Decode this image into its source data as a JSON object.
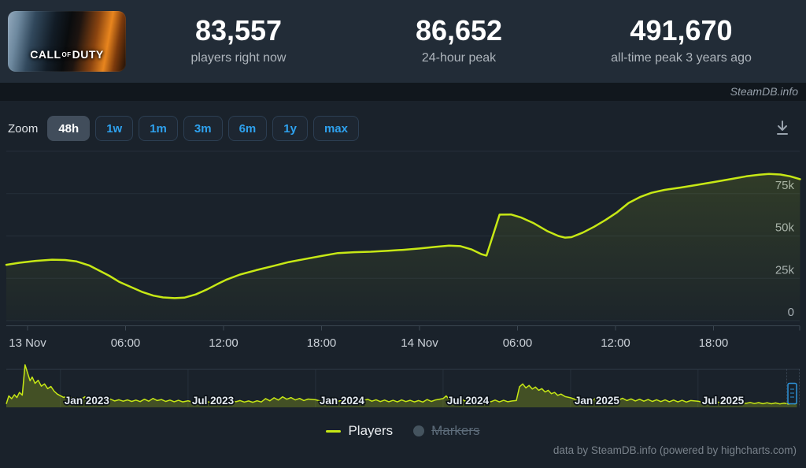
{
  "header": {
    "game_logo": [
      "CALL",
      "OF",
      "DUTY"
    ],
    "stats": [
      {
        "value": "83,557",
        "label": "players right now"
      },
      {
        "value": "86,652",
        "label": "24-hour peak"
      },
      {
        "value": "491,670",
        "label": "all-time peak 3 years ago"
      }
    ],
    "watermark": "SteamDB.info"
  },
  "toolbar": {
    "zoom_label": "Zoom",
    "ranges": [
      {
        "label": "48h",
        "selected": true
      },
      {
        "label": "1w",
        "selected": false
      },
      {
        "label": "1m",
        "selected": false
      },
      {
        "label": "3m",
        "selected": false
      },
      {
        "label": "6m",
        "selected": false
      },
      {
        "label": "1y",
        "selected": false
      },
      {
        "label": "max",
        "selected": false
      }
    ]
  },
  "legend": {
    "players_label": "Players",
    "markers_label": "Markers"
  },
  "footer": {
    "credits": "data by SteamDB.info (powered by highcharts.com)"
  },
  "colors": {
    "line": "#c7e815",
    "accent_blue": "#2ea1ee",
    "navigator_handle": "#2e93d9"
  },
  "chart_data": {
    "type": "line",
    "title": "",
    "ylim": [
      0,
      100000
    ],
    "yticks": [
      {
        "v": 0,
        "label": "0"
      },
      {
        "v": 25000,
        "label": "25k"
      },
      {
        "v": 50000,
        "label": "50k"
      },
      {
        "v": 75000,
        "label": "75k"
      }
    ],
    "xticks": [
      {
        "h": 0,
        "label": "13 Nov"
      },
      {
        "h": 6,
        "label": "06:00"
      },
      {
        "h": 12,
        "label": "12:00"
      },
      {
        "h": 18,
        "label": "18:00"
      },
      {
        "h": 24,
        "label": "14 Nov"
      },
      {
        "h": 30,
        "label": "06:00"
      },
      {
        "h": 36,
        "label": "12:00"
      },
      {
        "h": 42,
        "label": "18:00"
      }
    ],
    "series": [
      {
        "name": "Players",
        "color": "#c7e815",
        "points_hours_vs_players": [
          [
            -1.3,
            33000
          ],
          [
            -0.5,
            34200
          ],
          [
            0.5,
            35300
          ],
          [
            1.5,
            36000
          ],
          [
            2.3,
            35800
          ],
          [
            3,
            35000
          ],
          [
            3.8,
            32500
          ],
          [
            4.5,
            29000
          ],
          [
            5,
            26500
          ],
          [
            5.6,
            23000
          ],
          [
            6.3,
            20000
          ],
          [
            7,
            17000
          ],
          [
            7.7,
            14800
          ],
          [
            8.3,
            13700
          ],
          [
            9,
            13300
          ],
          [
            9.6,
            13600
          ],
          [
            10.3,
            15500
          ],
          [
            11,
            18500
          ],
          [
            11.6,
            21500
          ],
          [
            12.2,
            24300
          ],
          [
            13,
            27200
          ],
          [
            14,
            29800
          ],
          [
            15,
            32200
          ],
          [
            16,
            34600
          ],
          [
            17,
            36400
          ],
          [
            18,
            38200
          ],
          [
            19,
            39900
          ],
          [
            20,
            40400
          ],
          [
            21,
            40700
          ],
          [
            22,
            41200
          ],
          [
            23,
            41800
          ],
          [
            24,
            42600
          ],
          [
            25,
            43600
          ],
          [
            25.8,
            44300
          ],
          [
            26.5,
            44000
          ],
          [
            27.2,
            42000
          ],
          [
            27.8,
            39200
          ],
          [
            28.1,
            38400
          ],
          [
            28.9,
            62600
          ],
          [
            29.6,
            62700
          ],
          [
            30.2,
            61000
          ],
          [
            31,
            57500
          ],
          [
            31.8,
            53000
          ],
          [
            32.5,
            50000
          ],
          [
            32.9,
            49000
          ],
          [
            33.3,
            49300
          ],
          [
            34,
            52000
          ],
          [
            34.7,
            55500
          ],
          [
            35.4,
            59500
          ],
          [
            36.1,
            64000
          ],
          [
            36.8,
            69500
          ],
          [
            37.5,
            73000
          ],
          [
            38.2,
            75500
          ],
          [
            39,
            77200
          ],
          [
            40,
            78600
          ],
          [
            41,
            80200
          ],
          [
            42,
            81800
          ],
          [
            43,
            83500
          ],
          [
            44,
            85200
          ],
          [
            44.8,
            86200
          ],
          [
            45.4,
            86652
          ],
          [
            46.1,
            86300
          ],
          [
            46.7,
            85200
          ],
          [
            47.3,
            83557
          ]
        ]
      }
    ],
    "navigator": {
      "labels": [
        {
          "m": 2.55,
          "label": "Jan 2023"
        },
        {
          "m": 8.55,
          "label": "Jul 2023"
        },
        {
          "m": 14.55,
          "label": "Jan 2024"
        },
        {
          "m": 20.55,
          "label": "Jul 2024"
        },
        {
          "m": 26.55,
          "label": "Jan 2025"
        },
        {
          "m": 32.55,
          "label": "Jul 2025"
        }
      ],
      "points_months_vs_players_thousands": [
        [
          0,
          22
        ],
        [
          0.12,
          118
        ],
        [
          0.25,
          85
        ],
        [
          0.38,
          132
        ],
        [
          0.5,
          98
        ],
        [
          0.62,
          160
        ],
        [
          0.75,
          128
        ],
        [
          0.88,
          491.7
        ],
        [
          1.02,
          380
        ],
        [
          1.12,
          300
        ],
        [
          1.22,
          345
        ],
        [
          1.35,
          268
        ],
        [
          1.5,
          305
        ],
        [
          1.65,
          235
        ],
        [
          1.8,
          262
        ],
        [
          1.95,
          205
        ],
        [
          2.1,
          232
        ],
        [
          2.25,
          175
        ],
        [
          2.4,
          140
        ],
        [
          2.55,
          120
        ],
        [
          2.7,
          100
        ],
        [
          2.9,
          118
        ],
        [
          3.1,
          88
        ],
        [
          3.3,
          96
        ],
        [
          3.5,
          75
        ],
        [
          3.7,
          108
        ],
        [
          3.9,
          80
        ],
        [
          4.1,
          92
        ],
        [
          4.3,
          70
        ],
        [
          4.5,
          85
        ],
        [
          4.7,
          62
        ],
        [
          4.9,
          80
        ],
        [
          5.1,
          58
        ],
        [
          5.3,
          72
        ],
        [
          5.5,
          55
        ],
        [
          5.7,
          70
        ],
        [
          5.9,
          52
        ],
        [
          6.1,
          68
        ],
        [
          6.3,
          50
        ],
        [
          6.5,
          78
        ],
        [
          6.7,
          55
        ],
        [
          6.9,
          88
        ],
        [
          7.1,
          62
        ],
        [
          7.3,
          75
        ],
        [
          7.5,
          52
        ],
        [
          7.7,
          68
        ],
        [
          7.9,
          48
        ],
        [
          8.1,
          65
        ],
        [
          8.3,
          46
        ],
        [
          8.55,
          60
        ],
        [
          8.8,
          42
        ],
        [
          9,
          58
        ],
        [
          9.2,
          40
        ],
        [
          9.4,
          56
        ],
        [
          9.6,
          38
        ],
        [
          9.8,
          55
        ],
        [
          10,
          40
        ],
        [
          10.2,
          60
        ],
        [
          10.4,
          45
        ],
        [
          10.6,
          68
        ],
        [
          10.8,
          48
        ],
        [
          11,
          62
        ],
        [
          11.2,
          44
        ],
        [
          11.4,
          58
        ],
        [
          11.6,
          42
        ],
        [
          11.8,
          60
        ],
        [
          12,
          45
        ],
        [
          12.2,
          86
        ],
        [
          12.4,
          60
        ],
        [
          12.6,
          95
        ],
        [
          12.8,
          68
        ],
        [
          13,
          108
        ],
        [
          13.2,
          78
        ],
        [
          13.4,
          98
        ],
        [
          13.6,
          70
        ],
        [
          13.8,
          88
        ],
        [
          14,
          62
        ],
        [
          14.2,
          80
        ],
        [
          14.55,
          72
        ],
        [
          14.8,
          55
        ],
        [
          15,
          75
        ],
        [
          15.2,
          52
        ],
        [
          15.4,
          70
        ],
        [
          15.6,
          50
        ],
        [
          15.8,
          72
        ],
        [
          16,
          52
        ],
        [
          16.2,
          80
        ],
        [
          16.4,
          58
        ],
        [
          16.6,
          85
        ],
        [
          16.8,
          60
        ],
        [
          17,
          78
        ],
        [
          17.2,
          55
        ],
        [
          17.4,
          72
        ],
        [
          17.6,
          50
        ],
        [
          17.8,
          68
        ],
        [
          18,
          48
        ],
        [
          18.2,
          65
        ],
        [
          18.4,
          46
        ],
        [
          18.6,
          70
        ],
        [
          18.8,
          50
        ],
        [
          19,
          65
        ],
        [
          19.2,
          46
        ],
        [
          19.4,
          62
        ],
        [
          19.6,
          44
        ],
        [
          19.8,
          75
        ],
        [
          20,
          52
        ],
        [
          20.2,
          70
        ],
        [
          20.55,
          86
        ],
        [
          20.7,
          118
        ],
        [
          20.85,
          72
        ],
        [
          21,
          95
        ],
        [
          21.2,
          60
        ],
        [
          21.4,
          82
        ],
        [
          21.6,
          55
        ],
        [
          21.8,
          75
        ],
        [
          22,
          52
        ],
        [
          22.2,
          72
        ],
        [
          22.4,
          50
        ],
        [
          22.6,
          70
        ],
        [
          22.8,
          48
        ],
        [
          23,
          68
        ],
        [
          23.2,
          46
        ],
        [
          23.4,
          65
        ],
        [
          23.6,
          48
        ],
        [
          23.8,
          58
        ],
        [
          24,
          62
        ],
        [
          24.15,
          228
        ],
        [
          24.3,
          262
        ],
        [
          24.45,
          215
        ],
        [
          24.6,
          244
        ],
        [
          24.75,
          200
        ],
        [
          24.9,
          224
        ],
        [
          25.05,
          185
        ],
        [
          25.2,
          205
        ],
        [
          25.35,
          165
        ],
        [
          25.5,
          185
        ],
        [
          25.65,
          145
        ],
        [
          25.8,
          160
        ],
        [
          25.95,
          125
        ],
        [
          26.1,
          140
        ],
        [
          26.3,
          110
        ],
        [
          26.55,
          95
        ],
        [
          26.8,
          75
        ],
        [
          27,
          95
        ],
        [
          27.2,
          68
        ],
        [
          27.4,
          88
        ],
        [
          27.6,
          62
        ],
        [
          27.8,
          106
        ],
        [
          28,
          72
        ],
        [
          28.2,
          116
        ],
        [
          28.4,
          80
        ],
        [
          28.6,
          98
        ],
        [
          28.8,
          68
        ],
        [
          29,
          90
        ],
        [
          29.2,
          62
        ],
        [
          29.4,
          82
        ],
        [
          29.6,
          58
        ],
        [
          29.8,
          78
        ],
        [
          30,
          55
        ],
        [
          30.2,
          75
        ],
        [
          30.4,
          52
        ],
        [
          30.6,
          72
        ],
        [
          30.8,
          50
        ],
        [
          31,
          70
        ],
        [
          31.2,
          48
        ],
        [
          31.4,
          68
        ],
        [
          31.6,
          46
        ],
        [
          31.8,
          65
        ],
        [
          32,
          44
        ],
        [
          32.2,
          62
        ],
        [
          32.55,
          55
        ],
        [
          32.8,
          40
        ],
        [
          33,
          56
        ],
        [
          33.2,
          36
        ],
        [
          33.4,
          52
        ],
        [
          33.6,
          34
        ],
        [
          33.8,
          48
        ],
        [
          34,
          32
        ],
        [
          34.2,
          45
        ],
        [
          34.4,
          30
        ],
        [
          34.6,
          42
        ],
        [
          34.8,
          28
        ],
        [
          35,
          40
        ],
        [
          35.2,
          26
        ],
        [
          35.4,
          38
        ],
        [
          35.6,
          25
        ],
        [
          35.8,
          36
        ],
        [
          36,
          24
        ],
        [
          36.2,
          34
        ],
        [
          36.4,
          22
        ],
        [
          36.6,
          32
        ],
        [
          36.8,
          20
        ],
        [
          36.95,
          30
        ],
        [
          37.1,
          24
        ],
        [
          37.2,
          28
        ]
      ]
    }
  }
}
